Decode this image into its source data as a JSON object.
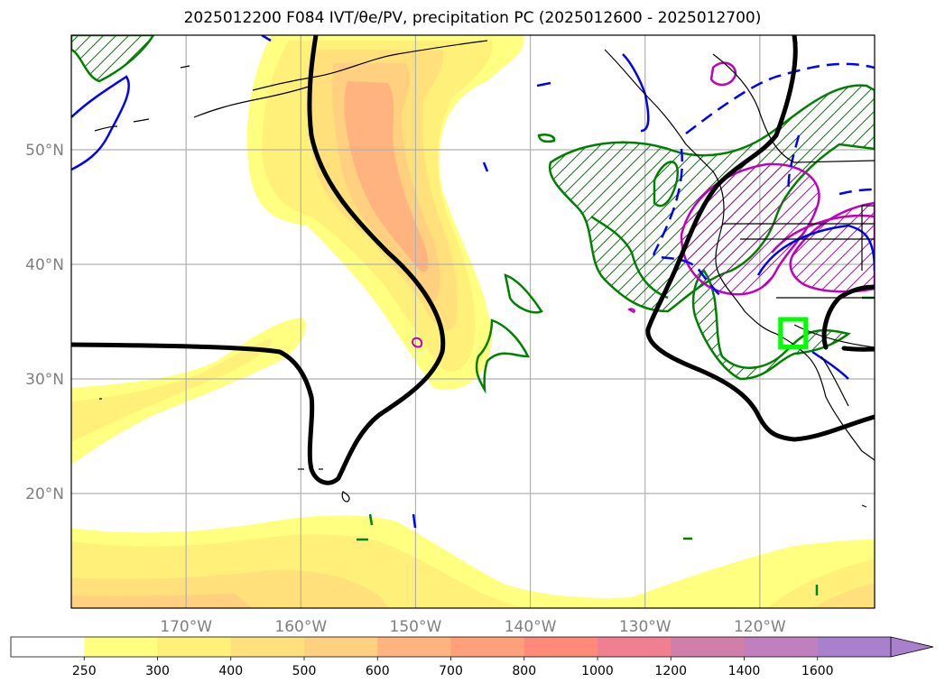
{
  "chart_data": {
    "type": "contour-map",
    "title": "2025012200 F084 IVT/θe/PV, precipitation PC (2025012600 - 2025012700)",
    "xlim": [
      -180,
      -110
    ],
    "ylim": [
      10,
      60
    ],
    "grid": true,
    "lon_ticks": [
      {
        "value": -170,
        "label": "170°W"
      },
      {
        "value": -160,
        "label": "160°W"
      },
      {
        "value": -150,
        "label": "150°W"
      },
      {
        "value": -140,
        "label": "140°W"
      },
      {
        "value": -130,
        "label": "130°W"
      },
      {
        "value": -120,
        "label": "120°W"
      }
    ],
    "lat_ticks": [
      {
        "value": 20,
        "label": "20°N"
      },
      {
        "value": 30,
        "label": "30°N"
      },
      {
        "value": 40,
        "label": "40°N"
      },
      {
        "value": 50,
        "label": "50°N"
      }
    ],
    "colorbar": {
      "orientation": "horizontal",
      "extend": "max",
      "levels": [
        250,
        300,
        400,
        500,
        600,
        700,
        800,
        1000,
        1200,
        1400,
        1600
      ],
      "labels": [
        "250",
        "300",
        "400",
        "500",
        "600",
        "700",
        "800",
        "1000",
        "1200",
        "1400",
        "1600"
      ],
      "colors": [
        "#ffffff",
        "#ffff80",
        "#fff07a",
        "#ffe07a",
        "#ffd080",
        "#ffb37f",
        "#ffa07a",
        "#ff8a7a",
        "#f08090",
        "#d080a8",
        "#c080c0",
        "#a880cc"
      ]
    },
    "highlight_box": {
      "lon": [
        -118.2,
        -116
      ],
      "lat": [
        32.8,
        35.2
      ],
      "color": "#00ff00"
    }
  },
  "colors": {
    "pv_contour": "#000000",
    "precip_pos": "#008000",
    "theta_neg": "#0000ff",
    "theta_pos": "#bf00bf",
    "coast": "#000000",
    "grid": "#b0b0b0"
  }
}
